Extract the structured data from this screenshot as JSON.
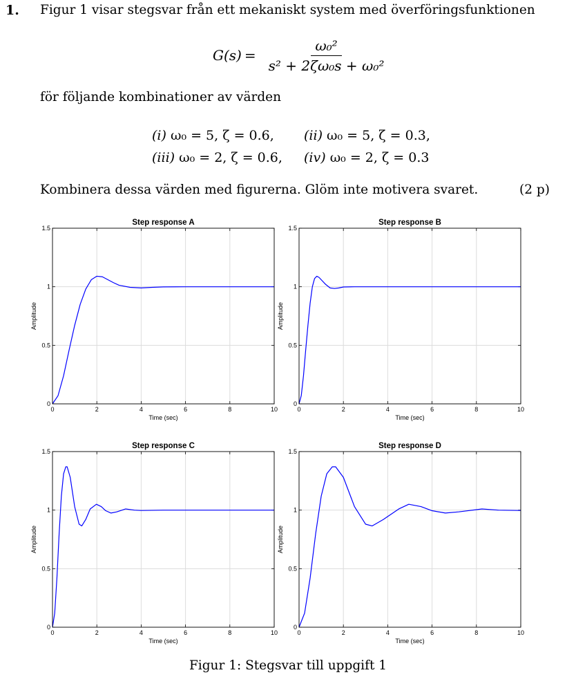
{
  "problem": {
    "number": "1.",
    "intro": "Figur 1 visar stegsvar från ett mekaniskt system med överföringsfunktionen",
    "formula": {
      "lhs": "G(s)",
      "eq": "=",
      "numerator": "ω₀²",
      "denominator": "s² + 2ζω₀s + ω₀²"
    },
    "combinations_intro": "för följande kombinationer av värden",
    "combinations": [
      {
        "label": "(i)",
        "text": "ω₀ = 5, ζ = 0.6,"
      },
      {
        "label": "(ii)",
        "text": "ω₀ = 5, ζ = 0.3,"
      },
      {
        "label": "(iii)",
        "text": "ω₀ = 2, ζ = 0.6,"
      },
      {
        "label": "(iv)",
        "text": "ω₀ = 2, ζ = 0.3"
      }
    ],
    "instruction": "Kombinera dessa värden med figurerna. Glöm inte motivera svaret.",
    "points": "(2 p)"
  },
  "figure_caption": "Figur 1: Stegsvar till uppgift 1",
  "chart_data": [
    {
      "type": "line",
      "title": "Step response A",
      "xlabel": "Time (sec)",
      "ylabel": "Amplitude",
      "xlim": [
        0,
        10
      ],
      "ylim": [
        0,
        1.5
      ],
      "xticks": [
        "0",
        "2",
        "4",
        "6",
        "8",
        "10"
      ],
      "yticks": [
        "0",
        "0.5",
        "1",
        "1.5"
      ],
      "grid": true,
      "color": "#0000ff",
      "series": [
        {
          "x": [
            0,
            0.25,
            0.5,
            0.75,
            1.0,
            1.25,
            1.5,
            1.75,
            2.0,
            2.25,
            2.5,
            2.75,
            3.0,
            3.5,
            4.0,
            4.5,
            5.0,
            6.0,
            7.0,
            8.0,
            10.0
          ],
          "y": [
            0,
            0.07,
            0.24,
            0.46,
            0.67,
            0.85,
            0.98,
            1.06,
            1.09,
            1.085,
            1.06,
            1.035,
            1.013,
            0.995,
            0.99,
            0.995,
            0.999,
            1.0,
            1.0,
            1.0,
            1.0
          ]
        }
      ]
    },
    {
      "type": "line",
      "title": "Step response B",
      "xlabel": "Time (sec)",
      "ylabel": "Amplitude",
      "xlim": [
        0,
        10
      ],
      "ylim": [
        0,
        1.5
      ],
      "xticks": [
        "0",
        "2",
        "4",
        "6",
        "8",
        "10"
      ],
      "yticks": [
        "0",
        "0.5",
        "1",
        "1.5"
      ],
      "grid": true,
      "color": "#0000ff",
      "series": [
        {
          "x": [
            0,
            0.1,
            0.2,
            0.3,
            0.4,
            0.5,
            0.6,
            0.7,
            0.8,
            0.9,
            1.0,
            1.2,
            1.4,
            1.6,
            1.8,
            2.0,
            2.5,
            3.0,
            5.0,
            10.0
          ],
          "y": [
            0,
            0.07,
            0.24,
            0.46,
            0.67,
            0.86,
            1.0,
            1.07,
            1.09,
            1.08,
            1.06,
            1.02,
            0.99,
            0.985,
            0.99,
            0.998,
            1.0,
            1.0,
            1.0,
            1.0
          ]
        }
      ]
    },
    {
      "type": "line",
      "title": "Step response C",
      "xlabel": "Time (sec)",
      "ylabel": "Amplitude",
      "xlim": [
        0,
        10
      ],
      "ylim": [
        0,
        1.5
      ],
      "xticks": [
        "0",
        "2",
        "4",
        "6",
        "8",
        "10"
      ],
      "yticks": [
        "0",
        "0.5",
        "1",
        "1.5"
      ],
      "grid": true,
      "color": "#0000ff",
      "series": [
        {
          "x": [
            0,
            0.1,
            0.2,
            0.3,
            0.4,
            0.5,
            0.6,
            0.66,
            0.8,
            1.0,
            1.2,
            1.32,
            1.5,
            1.7,
            1.98,
            2.2,
            2.4,
            2.64,
            2.9,
            3.3,
            3.7,
            4.0,
            5.0,
            6.0,
            10.0
          ],
          "y": [
            0,
            0.12,
            0.42,
            0.8,
            1.12,
            1.31,
            1.37,
            1.37,
            1.28,
            1.03,
            0.88,
            0.865,
            0.92,
            1.01,
            1.05,
            1.03,
            0.995,
            0.975,
            0.985,
            1.01,
            1.0,
            0.997,
            1.0,
            1.0,
            1.0
          ]
        }
      ]
    },
    {
      "type": "line",
      "title": "Step response D",
      "xlabel": "Time (sec)",
      "ylabel": "Amplitude",
      "xlim": [
        0,
        10
      ],
      "ylim": [
        0,
        1.5
      ],
      "xticks": [
        "0",
        "2",
        "4",
        "6",
        "8",
        "10"
      ],
      "yticks": [
        "0",
        "0.5",
        "1",
        "1.5"
      ],
      "grid": true,
      "color": "#0000ff",
      "series": [
        {
          "x": [
            0,
            0.25,
            0.5,
            0.75,
            1.0,
            1.25,
            1.5,
            1.65,
            2.0,
            2.5,
            3.0,
            3.3,
            3.8,
            4.5,
            4.95,
            5.5,
            6.0,
            6.6,
            7.2,
            8.25,
            9.0,
            10.0
          ],
          "y": [
            0,
            0.12,
            0.42,
            0.8,
            1.12,
            1.31,
            1.37,
            1.37,
            1.28,
            1.03,
            0.88,
            0.865,
            0.92,
            1.01,
            1.05,
            1.03,
            0.995,
            0.975,
            0.985,
            1.01,
            1.0,
            0.997
          ]
        }
      ]
    }
  ]
}
